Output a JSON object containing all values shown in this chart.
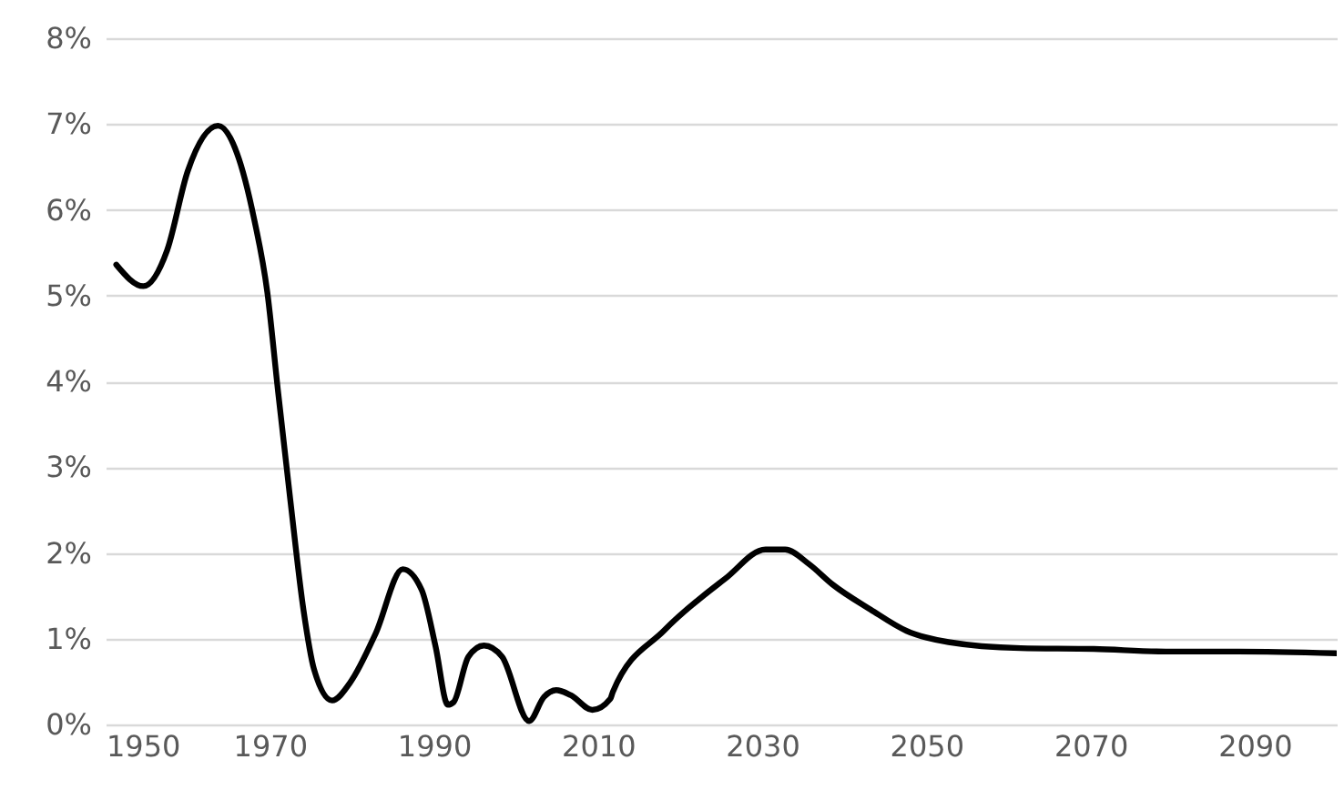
{
  "chart_data": {
    "type": "line",
    "x": [
      1951.3,
      1954.6,
      1957.5,
      1960,
      1963.7,
      1966,
      1968.1,
      1969.7,
      1971,
      1972.5,
      1974.1,
      1975.4,
      1977.6,
      1979.8,
      1982.9,
      1986.2,
      1988.5,
      1990.2,
      1991.7,
      1992.4,
      1994.2,
      1996.1,
      1998.3,
      2001.6,
      2003.4,
      2004.9,
      2006.7,
      2009.3,
      2011.5,
      2011.8,
      2018.1,
      2025.5,
      2030.4,
      2032.8,
      2035.7,
      2038.6,
      2043.2,
      2047.6,
      2052.7,
      2061.5,
      2070.4,
      2079.2,
      2088,
      2099.9
    ],
    "series": [
      {
        "color": "#000000",
        "values": [
          5.36,
          5.11,
          5.53,
          6.45,
          6.98,
          6.66,
          5.89,
          5.04,
          3.89,
          2.62,
          1.34,
          0.64,
          0.28,
          0.49,
          1.06,
          1.81,
          1.57,
          0.91,
          0.23,
          0.26,
          0.79,
          0.92,
          0.79,
          0.04,
          0.32,
          0.4,
          0.34,
          0.17,
          0.3,
          0.38,
          1.1,
          1.7,
          2.04,
          2.04,
          1.87,
          1.63,
          1.34,
          1.09,
          0.96,
          0.89,
          0.88,
          0.85,
          0.85,
          0.83
        ]
      }
    ],
    "xlim": [
      1950,
      2100
    ],
    "xticks": [
      1950,
      1970,
      1990,
      2010,
      2030,
      2050,
      2070,
      2090
    ],
    "ylim": [
      0,
      8
    ],
    "yticks": [
      {
        "value": 0,
        "label": "0%"
      },
      {
        "value": 1,
        "label": "1%"
      },
      {
        "value": 2,
        "label": "2%"
      },
      {
        "value": 3,
        "label": "3%"
      },
      {
        "value": 4,
        "label": "4%"
      },
      {
        "value": 5,
        "label": "5%"
      },
      {
        "value": 6,
        "label": "6%"
      },
      {
        "value": 7,
        "label": "7%"
      },
      {
        "value": 8,
        "label": "8%"
      }
    ],
    "grid": "y",
    "marker": "none",
    "line_style": "solid"
  }
}
